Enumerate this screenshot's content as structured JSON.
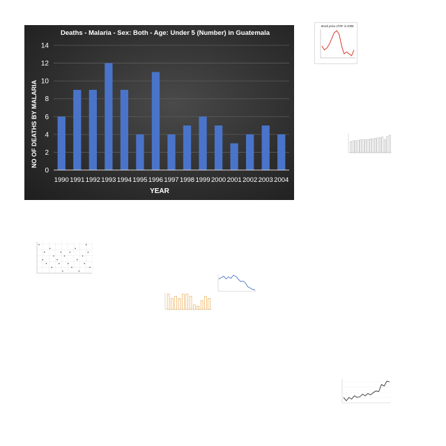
{
  "chart_data": [
    {
      "type": "bar",
      "title": "Deaths - Malaria - Sex: Both - Age: Under 5 (Number) in Guatemala",
      "xlabel": "YEAR",
      "ylabel": "NO OF DEATHS BY MALARIA",
      "categories": [
        "1990",
        "1991",
        "1992",
        "1993",
        "1994",
        "1995",
        "1996",
        "1997",
        "1998",
        "1999",
        "2000",
        "2001",
        "2002",
        "2003",
        "2004"
      ],
      "values": [
        6,
        9,
        9,
        12,
        9,
        4,
        11,
        4,
        5,
        6,
        5,
        3,
        4,
        5,
        4
      ],
      "ylim": [
        0,
        14
      ],
      "yticks": [
        "0",
        "2",
        "4",
        "6",
        "8",
        "10",
        "12",
        "14"
      ],
      "grid": true,
      "bar_color": "#4a74c9",
      "background": "dark"
    },
    {
      "type": "line",
      "title": "Stock price of RF in 2008",
      "values": [
        5,
        4,
        4.5,
        5.5,
        7,
        8.5,
        9,
        8,
        5,
        3,
        3.5,
        3,
        2.5,
        4
      ],
      "line_color": "#d93b2b"
    },
    {
      "type": "bar",
      "values": [
        6,
        6.5,
        6.5,
        6.8,
        7,
        7,
        7.1,
        7.2,
        7.5,
        7.5,
        7.8,
        8,
        8.2,
        8.5,
        7,
        8.8,
        9.5
      ],
      "bar_color": "#8a8a8a"
    },
    {
      "type": "scatter",
      "x": [
        1,
        2,
        2.5,
        3,
        4,
        4.5,
        5,
        6,
        6.5,
        7,
        7.5,
        8,
        9,
        9.5,
        10,
        11,
        11.5,
        12,
        13,
        13.5,
        14,
        14.5,
        15
      ],
      "y": [
        9,
        5,
        7,
        4,
        8,
        3,
        6,
        5,
        4,
        7,
        2,
        6,
        4,
        7,
        3,
        8,
        5,
        2,
        6,
        4,
        9,
        7,
        3
      ],
      "point_color": "#555555"
    },
    {
      "type": "bar",
      "values": [
        7,
        5,
        6,
        5,
        7,
        7,
        6,
        2,
        1.5,
        4,
        6,
        5
      ],
      "bar_color": "#e8a13a"
    },
    {
      "type": "line",
      "values": [
        6,
        6.5,
        7,
        6,
        6.8,
        6.2,
        7.4,
        7,
        6,
        5,
        5.2,
        4.5,
        3,
        2.5,
        2,
        1.8
      ],
      "line_color": "#4a74c9"
    },
    {
      "type": "line",
      "values": [
        3,
        2,
        3,
        2.5,
        3.5,
        3,
        3.2,
        4,
        3.5,
        4.2,
        3.8,
        4.5,
        5,
        4.8,
        7,
        6.5,
        8,
        7.8
      ],
      "line_color": "#333333"
    }
  ]
}
